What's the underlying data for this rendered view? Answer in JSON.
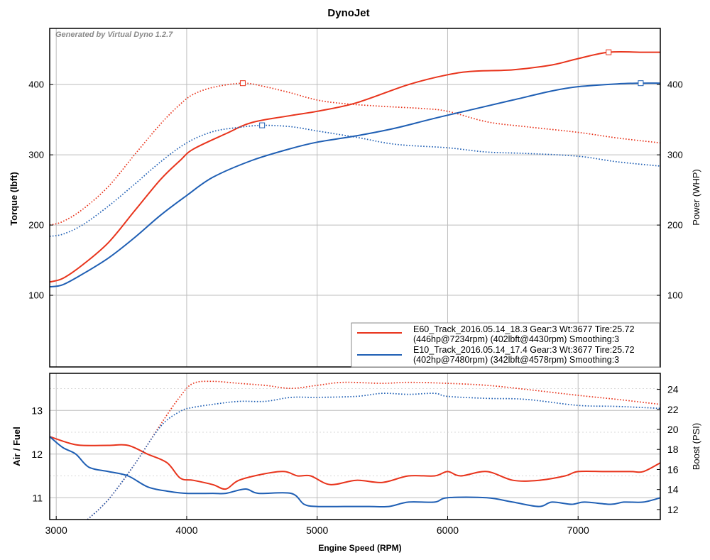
{
  "title": "DynoJet",
  "generator": "Generated by Virtual Dyno 1.2.7",
  "colors": {
    "run1": "#e8341c",
    "run2": "#1f5fb4",
    "grid": "#c8c8c8",
    "frame": "#000000"
  },
  "x_axis": {
    "label": "Engine Speed (RPM)",
    "range": [
      2950,
      7630
    ],
    "ticks": [
      3000,
      4000,
      5000,
      6000,
      7000
    ]
  },
  "legend": [
    {
      "line1": "E60_Track_2016.05.14_18.3 Gear:3 Wt:3677 Tire:25.72",
      "line2": "(446hp@7234rpm) (402lbft@4430rpm) Smoothing:3"
    },
    {
      "line1": "E10_Track_2016.05.14_17.4 Gear:3 Wt:3677 Tire:25.72",
      "line2": "(402hp@7480rpm) (342lbft@4578rpm) Smoothing:3"
    }
  ],
  "chart_data": [
    {
      "type": "line",
      "panel": "upper",
      "title": "DynoJet",
      "xlabel": "Engine Speed (RPM)",
      "ylabel": "Torque (lbft)",
      "ylabel_right": "Power (WHP)",
      "xlim": [
        2950,
        7630
      ],
      "ylim": [
        -2,
        480
      ],
      "yticks": [
        100,
        200,
        300,
        400
      ],
      "yticks_right": [
        100,
        200,
        300,
        400
      ],
      "grid": true,
      "legend_position": "bottom-right",
      "series": [
        {
          "name": "E60_Track_2016.05.14_18.3 Gear:3 Wt:3677 Tire:25.72",
          "quantity": "power",
          "style": "solid",
          "color": "#e8341c",
          "peak_marker": [
            7234,
            446
          ],
          "x": [
            2950,
            3050,
            3200,
            3400,
            3600,
            3800,
            3950,
            4050,
            4300,
            4500,
            4800,
            5000,
            5300,
            5700,
            6000,
            6200,
            6500,
            6800,
            7000,
            7234,
            7500,
            7630
          ],
          "values": [
            119,
            124,
            143,
            175,
            220,
            265,
            292,
            308,
            330,
            346,
            356,
            362,
            374,
            400,
            414,
            419,
            421,
            428,
            437,
            446,
            446,
            446
          ]
        },
        {
          "name": "E60_Track_2016.05.14_18.3 Gear:3 Wt:3677 Tire:25.72",
          "quantity": "torque",
          "style": "dotted",
          "color": "#e8341c",
          "peak_marker": [
            4430,
            402
          ],
          "x": [
            2950,
            3050,
            3200,
            3400,
            3600,
            3800,
            3950,
            4050,
            4200,
            4430,
            4600,
            4800,
            5000,
            5200,
            5500,
            5800,
            6000,
            6300,
            6600,
            7000,
            7300,
            7630
          ],
          "values": [
            200,
            205,
            222,
            255,
            300,
            344,
            372,
            386,
            396,
            402,
            397,
            388,
            378,
            373,
            369,
            366,
            362,
            347,
            340,
            332,
            324,
            317
          ]
        },
        {
          "name": "E10_Track_2016.05.14_17.4 Gear:3 Wt:3677 Tire:25.72",
          "quantity": "power",
          "style": "solid",
          "color": "#1f5fb4",
          "peak_marker": [
            7480,
            402
          ],
          "x": [
            2950,
            3050,
            3200,
            3400,
            3600,
            3800,
            4000,
            4200,
            4500,
            4800,
            5000,
            5300,
            5600,
            5900,
            6200,
            6500,
            6800,
            7000,
            7300,
            7480,
            7630
          ],
          "values": [
            112,
            115,
            130,
            153,
            182,
            214,
            242,
            268,
            292,
            309,
            318,
            327,
            338,
            352,
            365,
            378,
            391,
            397,
            401,
            402,
            402
          ]
        },
        {
          "name": "E10_Track_2016.05.14_17.4 Gear:3 Wt:3677 Tire:25.72",
          "quantity": "torque",
          "style": "dotted",
          "color": "#1f5fb4",
          "peak_marker": [
            4578,
            342
          ],
          "x": [
            2950,
            3050,
            3200,
            3400,
            3600,
            3800,
            4000,
            4200,
            4400,
            4578,
            4800,
            5000,
            5300,
            5600,
            6000,
            6300,
            6600,
            7000,
            7300,
            7630
          ],
          "values": [
            184,
            187,
            200,
            227,
            258,
            290,
            317,
            333,
            339,
            342,
            340,
            334,
            325,
            315,
            310,
            304,
            302,
            298,
            290,
            284
          ]
        }
      ]
    },
    {
      "type": "line",
      "panel": "lower",
      "xlabel": "Engine Speed (RPM)",
      "ylabel": "Air / Fuel",
      "ylabel_right": "Boost (PSI)",
      "xlim": [
        2950,
        7630
      ],
      "ylim": [
        10.5,
        13.85
      ],
      "ylim_right": [
        11.0,
        25.6
      ],
      "yticks": [
        11,
        12,
        13
      ],
      "yticks_right": [
        12,
        14,
        16,
        18,
        20,
        22,
        24
      ],
      "grid": true,
      "series": [
        {
          "name": "E60_Track_2016.05.14_18.3 Gear:3 Wt:3677 Tire:25.72",
          "quantity": "air_fuel",
          "style": "solid",
          "color": "#e8341c",
          "x": [
            2950,
            3100,
            3200,
            3400,
            3550,
            3700,
            3850,
            3950,
            4050,
            4200,
            4300,
            4400,
            4600,
            4750,
            4850,
            4950,
            5100,
            5300,
            5500,
            5700,
            5900,
            6000,
            6100,
            6300,
            6500,
            6700,
            6900,
            7000,
            7200,
            7400,
            7500,
            7630
          ],
          "values": [
            12.4,
            12.25,
            12.2,
            12.2,
            12.2,
            12.0,
            11.8,
            11.45,
            11.4,
            11.3,
            11.2,
            11.4,
            11.55,
            11.6,
            11.5,
            11.5,
            11.3,
            11.4,
            11.35,
            11.5,
            11.5,
            11.6,
            11.5,
            11.6,
            11.4,
            11.4,
            11.5,
            11.6,
            11.6,
            11.6,
            11.6,
            11.8
          ]
        },
        {
          "name": "E60_Track_2016.05.14_18.3 Gear:3 Wt:3677 Tire:25.72",
          "quantity": "boost",
          "style": "dotted",
          "color": "#e8341c",
          "x": [
            3240,
            3400,
            3600,
            3800,
            3950,
            4050,
            4200,
            4400,
            4600,
            4800,
            5000,
            5200,
            5500,
            5700,
            6000,
            6300,
            6600,
            7000,
            7300,
            7630
          ],
          "values": [
            11.0,
            13.0,
            16.5,
            20.5,
            23.3,
            24.6,
            24.8,
            24.6,
            24.4,
            24.1,
            24.4,
            24.7,
            24.6,
            24.7,
            24.6,
            24.4,
            24.0,
            23.4,
            23.0,
            22.5
          ]
        },
        {
          "name": "E10_Track_2016.05.14_17.4 Gear:3 Wt:3677 Tire:25.72",
          "quantity": "air_fuel",
          "style": "solid",
          "color": "#1f5fb4",
          "x": [
            2950,
            3050,
            3150,
            3250,
            3400,
            3550,
            3700,
            3850,
            4000,
            4200,
            4300,
            4450,
            4550,
            4800,
            4900,
            5000,
            5200,
            5400,
            5550,
            5700,
            5900,
            6000,
            6300,
            6500,
            6700,
            6800,
            6950,
            7050,
            7250,
            7350,
            7500,
            7630
          ],
          "values": [
            12.4,
            12.15,
            12.0,
            11.7,
            11.6,
            11.5,
            11.25,
            11.15,
            11.1,
            11.1,
            11.1,
            11.2,
            11.1,
            11.1,
            10.85,
            10.8,
            10.8,
            10.8,
            10.8,
            10.9,
            10.9,
            11.0,
            11.0,
            10.9,
            10.8,
            10.9,
            10.85,
            10.9,
            10.85,
            10.9,
            10.9,
            11.0
          ]
        },
        {
          "name": "E10_Track_2016.05.14_17.4 Gear:3 Wt:3677 Tire:25.72",
          "quantity": "boost",
          "style": "dotted",
          "color": "#1f5fb4",
          "x": [
            3240,
            3400,
            3600,
            3800,
            3950,
            4050,
            4200,
            4400,
            4600,
            4800,
            5000,
            5300,
            5500,
            5700,
            5900,
            6000,
            6300,
            6600,
            7000,
            7300,
            7630
          ],
          "values": [
            11.0,
            13.0,
            16.5,
            20.3,
            21.8,
            22.2,
            22.5,
            22.8,
            22.8,
            23.2,
            23.2,
            23.3,
            23.6,
            23.5,
            23.6,
            23.3,
            23.1,
            23.0,
            22.4,
            22.3,
            22.1
          ]
        }
      ]
    }
  ]
}
